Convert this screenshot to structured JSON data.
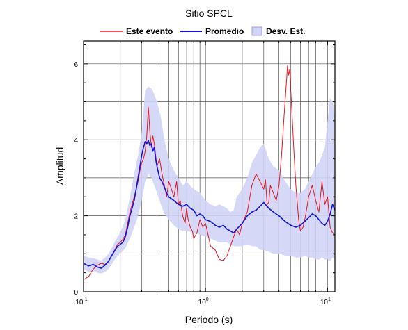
{
  "chart_data": {
    "type": "line",
    "title": "Sitio SPCL",
    "xlabel": "Periodo (s)",
    "ylabel": "Amplitud",
    "xscale": "log",
    "xlim": [
      0.1,
      11.5
    ],
    "ylim": [
      0,
      6.6
    ],
    "grid": "on",
    "legend_position": "top",
    "x_ticks": [
      {
        "value": 0.1,
        "base": "10",
        "exp": "-1"
      },
      {
        "value": 1,
        "base": "10",
        "exp": "0"
      },
      {
        "value": 10,
        "base": "10",
        "exp": "1"
      }
    ],
    "y_ticks": [
      {
        "value": 0,
        "label": "0"
      },
      {
        "value": 2,
        "label": "2"
      },
      {
        "value": 4,
        "label": "4"
      },
      {
        "value": 6,
        "label": "6"
      }
    ],
    "legend": [
      {
        "label": "Este evento",
        "kind": "line",
        "color": "#e8141e"
      },
      {
        "label": "Promedio",
        "kind": "line",
        "color": "#1414d2"
      },
      {
        "label": "Desv. Est.",
        "kind": "patch",
        "color": "#d2d4f7"
      }
    ],
    "colors": {
      "event": "#e8141e",
      "mean": "#1414d2",
      "band": "#d2d4f7",
      "band_edge": "#8c8ce0"
    },
    "series": [
      {
        "name": "Este evento",
        "role": "event",
        "x": [
          0.1,
          0.11,
          0.12,
          0.13,
          0.14,
          0.15,
          0.16,
          0.17,
          0.18,
          0.19,
          0.2,
          0.21,
          0.22,
          0.23,
          0.24,
          0.25,
          0.26,
          0.27,
          0.28,
          0.29,
          0.3,
          0.31,
          0.32,
          0.33,
          0.34,
          0.35,
          0.36,
          0.37,
          0.38,
          0.39,
          0.4,
          0.42,
          0.44,
          0.46,
          0.48,
          0.5,
          0.52,
          0.55,
          0.58,
          0.6,
          0.62,
          0.65,
          0.68,
          0.7,
          0.72,
          0.75,
          0.78,
          0.8,
          0.85,
          0.9,
          0.95,
          1.0,
          1.05,
          1.1,
          1.2,
          1.3,
          1.4,
          1.5,
          1.6,
          1.7,
          1.8,
          1.9,
          2.0,
          2.2,
          2.4,
          2.6,
          2.8,
          3.0,
          3.1,
          3.2,
          3.3,
          3.4,
          3.6,
          3.8,
          4.0,
          4.2,
          4.4,
          4.6,
          4.7,
          4.8,
          4.9,
          5.0,
          5.1,
          5.3,
          5.5,
          5.8,
          6.0,
          6.3,
          6.6,
          7.0,
          7.5,
          8.0,
          8.5,
          9.0,
          9.5,
          10.0,
          10.5,
          11.0,
          11.5
        ],
        "y": [
          0.32,
          0.4,
          0.6,
          0.7,
          0.75,
          0.72,
          0.8,
          0.95,
          1.1,
          1.25,
          1.3,
          1.38,
          1.5,
          1.8,
          2.1,
          2.3,
          2.5,
          2.7,
          2.9,
          3.2,
          3.4,
          3.5,
          3.7,
          4.1,
          4.85,
          4.2,
          3.8,
          4.1,
          3.9,
          3.6,
          3.3,
          3.5,
          3.1,
          2.8,
          2.5,
          2.9,
          2.75,
          2.5,
          2.9,
          2.3,
          2.4,
          2.0,
          1.8,
          2.2,
          1.9,
          1.7,
          1.6,
          1.4,
          1.55,
          1.9,
          1.7,
          1.8,
          1.5,
          1.2,
          1.1,
          0.85,
          0.82,
          0.95,
          1.2,
          1.45,
          1.65,
          1.5,
          1.8,
          2.1,
          2.8,
          3.1,
          2.9,
          2.7,
          2.95,
          2.3,
          2.35,
          2.8,
          2.6,
          2.4,
          2.8,
          3.6,
          4.6,
          5.5,
          5.95,
          5.7,
          5.85,
          5.3,
          4.8,
          3.7,
          2.8,
          1.9,
          1.6,
          1.7,
          2.0,
          2.5,
          2.8,
          2.4,
          2.1,
          2.9,
          2.3,
          2.5,
          1.7,
          1.55,
          1.5
        ]
      },
      {
        "name": "Promedio",
        "role": "mean",
        "x": [
          0.1,
          0.11,
          0.12,
          0.13,
          0.14,
          0.15,
          0.16,
          0.17,
          0.18,
          0.19,
          0.2,
          0.21,
          0.22,
          0.23,
          0.24,
          0.25,
          0.26,
          0.27,
          0.28,
          0.29,
          0.3,
          0.31,
          0.32,
          0.33,
          0.34,
          0.35,
          0.36,
          0.37,
          0.38,
          0.39,
          0.4,
          0.42,
          0.44,
          0.46,
          0.48,
          0.5,
          0.55,
          0.6,
          0.65,
          0.7,
          0.75,
          0.8,
          0.85,
          0.9,
          0.95,
          1.0,
          1.1,
          1.2,
          1.3,
          1.4,
          1.5,
          1.6,
          1.7,
          1.8,
          2.0,
          2.2,
          2.4,
          2.6,
          2.8,
          3.0,
          3.3,
          3.6,
          4.0,
          4.5,
          5.0,
          5.5,
          6.0,
          6.5,
          7.0,
          7.5,
          8.0,
          8.5,
          9.0,
          9.5,
          10.0,
          10.5,
          11.0,
          11.5
        ],
        "y": [
          0.75,
          0.68,
          0.72,
          0.65,
          0.62,
          0.7,
          0.8,
          0.95,
          1.08,
          1.2,
          1.25,
          1.3,
          1.45,
          1.7,
          2.0,
          2.2,
          2.4,
          2.7,
          3.0,
          3.3,
          3.6,
          3.8,
          3.95,
          3.9,
          3.98,
          3.85,
          3.9,
          3.7,
          3.8,
          3.5,
          3.3,
          3.0,
          2.9,
          2.75,
          2.6,
          2.5,
          2.4,
          2.3,
          2.25,
          2.3,
          2.2,
          2.15,
          2.0,
          2.05,
          2.0,
          1.9,
          1.85,
          1.75,
          1.7,
          1.75,
          1.65,
          1.6,
          1.55,
          1.65,
          1.8,
          2.0,
          2.1,
          2.15,
          2.25,
          2.35,
          2.2,
          2.1,
          2.0,
          1.85,
          1.75,
          1.7,
          1.75,
          1.85,
          1.95,
          2.05,
          2.0,
          1.9,
          1.8,
          1.75,
          1.85,
          2.05,
          2.3,
          2.15
        ]
      },
      {
        "name": "Desv. Est.",
        "role": "band",
        "x": [
          0.1,
          0.11,
          0.12,
          0.13,
          0.14,
          0.15,
          0.16,
          0.17,
          0.18,
          0.19,
          0.2,
          0.22,
          0.24,
          0.26,
          0.28,
          0.3,
          0.32,
          0.34,
          0.36,
          0.38,
          0.4,
          0.43,
          0.46,
          0.5,
          0.55,
          0.6,
          0.65,
          0.7,
          0.8,
          0.9,
          1.0,
          1.1,
          1.2,
          1.3,
          1.4,
          1.5,
          1.6,
          1.7,
          1.8,
          2.0,
          2.2,
          2.4,
          2.6,
          2.8,
          3.0,
          3.3,
          3.6,
          4.0,
          4.5,
          5.0,
          5.5,
          6.0,
          6.5,
          7.0,
          7.5,
          8.0,
          8.5,
          9.0,
          9.5,
          10.0,
          10.5,
          11.0,
          11.5
        ],
        "upper": [
          0.95,
          0.9,
          0.88,
          0.85,
          0.82,
          0.9,
          1.0,
          1.15,
          1.3,
          1.45,
          1.55,
          1.9,
          2.5,
          3.1,
          3.6,
          4.2,
          5.3,
          5.4,
          5.35,
          5.2,
          5.0,
          4.6,
          4.0,
          3.5,
          3.2,
          3.0,
          2.8,
          2.9,
          2.7,
          2.6,
          2.4,
          2.3,
          2.25,
          2.3,
          2.25,
          2.2,
          2.1,
          2.15,
          2.5,
          2.7,
          3.0,
          3.4,
          3.6,
          3.8,
          3.9,
          3.5,
          3.3,
          3.2,
          2.9,
          2.7,
          2.6,
          2.6,
          2.7,
          2.9,
          3.1,
          3.3,
          3.4,
          3.6,
          3.8,
          4.5,
          5.1,
          5.0,
          4.6
        ],
        "lower": [
          0.6,
          0.52,
          0.55,
          0.5,
          0.48,
          0.52,
          0.6,
          0.72,
          0.85,
          0.95,
          1.0,
          1.15,
          1.4,
          1.7,
          2.0,
          2.4,
          2.9,
          3.1,
          3.0,
          2.8,
          2.6,
          2.3,
          2.05,
          1.9,
          1.75,
          1.65,
          1.6,
          1.6,
          1.55,
          1.5,
          1.45,
          1.4,
          1.35,
          1.3,
          1.3,
          1.3,
          1.25,
          1.2,
          1.2,
          1.2,
          1.25,
          1.2,
          1.2,
          1.1,
          1.1,
          1.05,
          1.0,
          1.0,
          0.95,
          0.95,
          0.9,
          0.9,
          0.95,
          0.9,
          0.9,
          0.85,
          0.85,
          0.9,
          0.85,
          0.85,
          0.8,
          0.9,
          0.85
        ]
      }
    ]
  }
}
